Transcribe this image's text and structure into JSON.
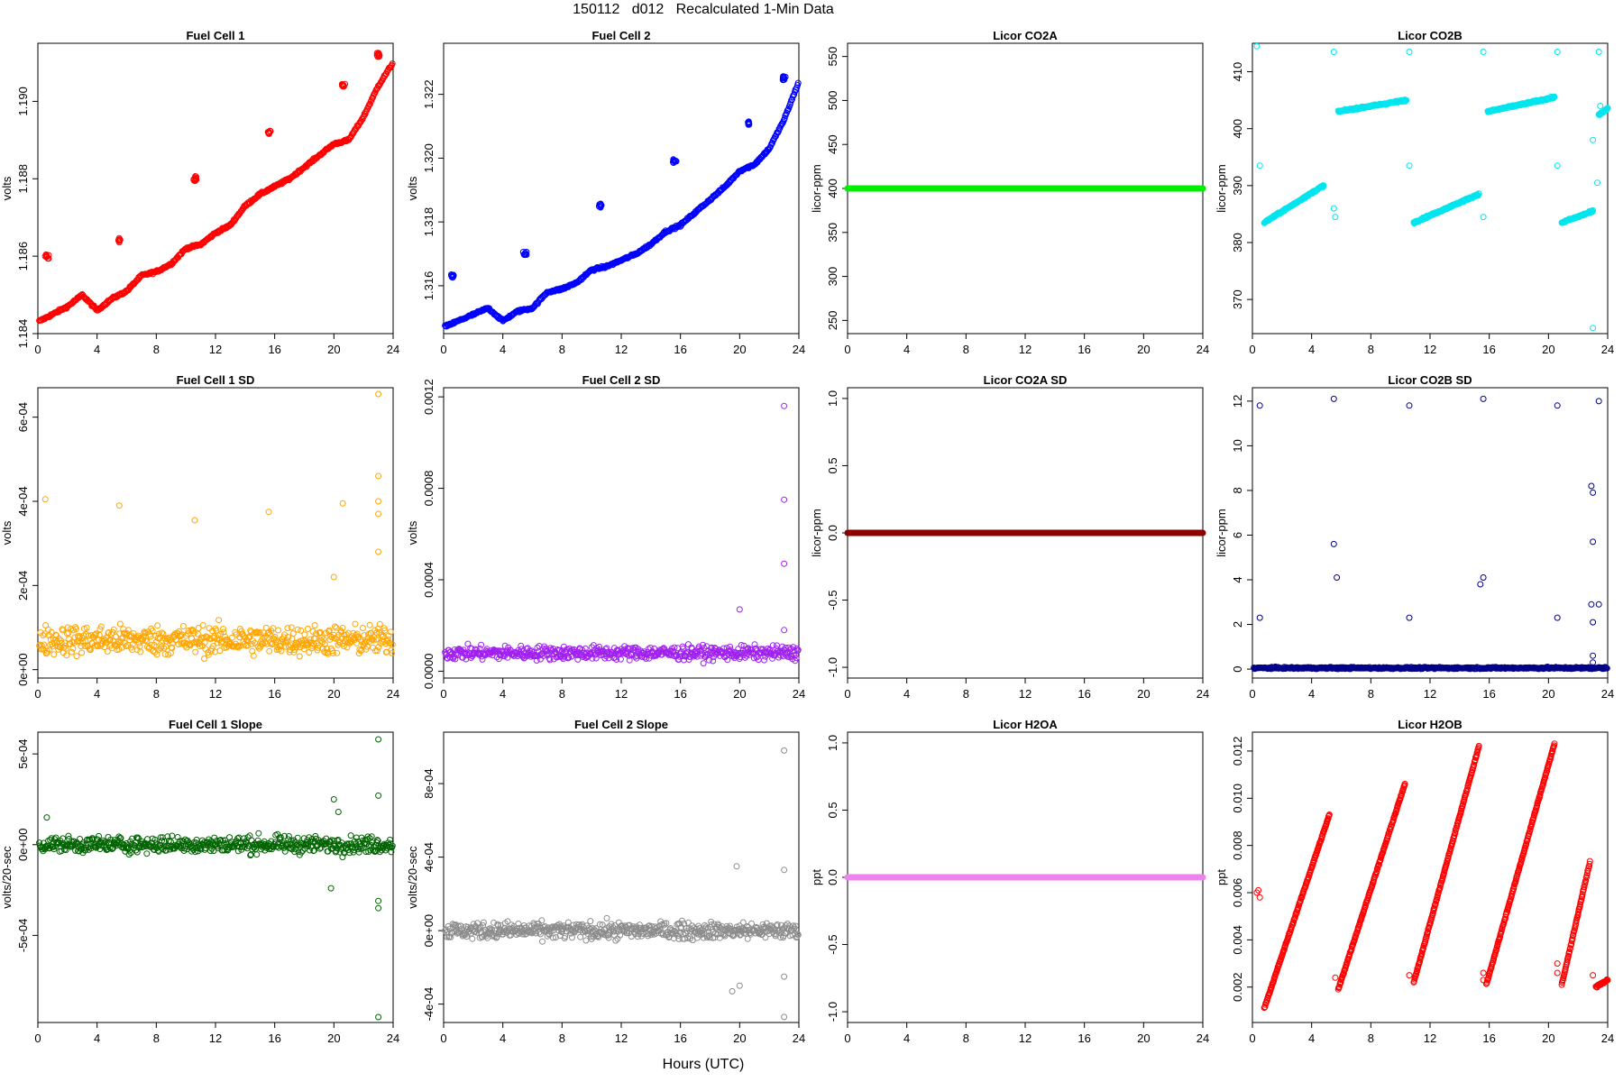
{
  "figure": {
    "title": "150112   d012   Recalculated 1-Min Data",
    "xlabel": "Hours (UTC)"
  },
  "chart_data": [
    {
      "type": "scatter",
      "title": "Fuel Cell 1",
      "ylabel": "volts",
      "color": "#ff0000",
      "xlim": [
        0,
        24
      ],
      "ylim": [
        1.184,
        1.1915
      ],
      "xticks": [
        0,
        4,
        8,
        12,
        16,
        20,
        24
      ],
      "yticks": [
        1.184,
        1.186,
        1.188,
        1.19
      ],
      "yticklabels": [
        "1.184",
        "1.186",
        "1.188",
        "1.190"
      ],
      "trend": [
        [
          0,
          1.1843
        ],
        [
          1,
          1.1845
        ],
        [
          2,
          1.1847
        ],
        [
          3,
          1.185
        ],
        [
          4,
          1.1846
        ],
        [
          5,
          1.1849
        ],
        [
          6,
          1.1851
        ],
        [
          7,
          1.1855
        ],
        [
          8,
          1.1856
        ],
        [
          9,
          1.1858
        ],
        [
          10,
          1.1862
        ],
        [
          11,
          1.1863
        ],
        [
          12,
          1.1866
        ],
        [
          13,
          1.1868
        ],
        [
          14,
          1.1873
        ],
        [
          15,
          1.1876
        ],
        [
          16,
          1.1878
        ],
        [
          17,
          1.188
        ],
        [
          18,
          1.1883
        ],
        [
          19,
          1.1886
        ],
        [
          20,
          1.1889
        ],
        [
          21,
          1.189
        ],
        [
          22,
          1.1896
        ],
        [
          23,
          1.1904
        ],
        [
          24,
          1.191
        ]
      ],
      "clusters": [
        [
          0.6,
          1.186
        ],
        [
          5.5,
          1.1864
        ],
        [
          10.6,
          1.188
        ],
        [
          15.6,
          1.1892
        ],
        [
          20.6,
          1.1904
        ],
        [
          23.0,
          1.1912
        ]
      ]
    },
    {
      "type": "scatter",
      "title": "Fuel Cell 2",
      "ylabel": "volts",
      "color": "#0000ff",
      "xlim": [
        0,
        24
      ],
      "ylim": [
        1.3145,
        1.3236
      ],
      "xticks": [
        0,
        4,
        8,
        12,
        16,
        20,
        24
      ],
      "yticks": [
        1.316,
        1.318,
        1.32,
        1.322
      ],
      "yticklabels": [
        "1.316",
        "1.318",
        "1.320",
        "1.322"
      ],
      "trend": [
        [
          0,
          1.3147
        ],
        [
          1,
          1.3149
        ],
        [
          2,
          1.3151
        ],
        [
          3,
          1.3153
        ],
        [
          4,
          1.3149
        ],
        [
          5,
          1.3152
        ],
        [
          6,
          1.3153
        ],
        [
          7,
          1.3158
        ],
        [
          8,
          1.3159
        ],
        [
          9,
          1.3161
        ],
        [
          10,
          1.3165
        ],
        [
          11,
          1.3166
        ],
        [
          12,
          1.3168
        ],
        [
          13,
          1.317
        ],
        [
          14,
          1.3173
        ],
        [
          15,
          1.3177
        ],
        [
          16,
          1.3179
        ],
        [
          17,
          1.3183
        ],
        [
          18,
          1.3187
        ],
        [
          19,
          1.3191
        ],
        [
          20,
          1.3196
        ],
        [
          21,
          1.3198
        ],
        [
          22,
          1.3203
        ],
        [
          23,
          1.3212
        ],
        [
          24,
          1.3224
        ]
      ],
      "clusters": [
        [
          0.6,
          1.3163
        ],
        [
          5.5,
          1.317
        ],
        [
          10.6,
          1.3185
        ],
        [
          15.6,
          1.3199
        ],
        [
          20.6,
          1.3211
        ],
        [
          23.0,
          1.3225
        ]
      ]
    },
    {
      "type": "line",
      "title": "Licor CO2A",
      "ylabel": "licor-ppm",
      "color": "#00ee00",
      "xlim": [
        0,
        24
      ],
      "ylim": [
        235,
        565
      ],
      "xticks": [
        0,
        4,
        8,
        12,
        16,
        20,
        24
      ],
      "yticks": [
        250,
        300,
        350,
        400,
        450,
        500,
        550
      ],
      "yticklabels": [
        "250",
        "300",
        "350",
        "400",
        "450",
        "500",
        "550"
      ],
      "constant": 400
    },
    {
      "type": "scatter",
      "title": "Licor CO2B",
      "ylabel": "licor-ppm",
      "color": "#00e5ee",
      "xlim": [
        0,
        24
      ],
      "ylim": [
        364,
        415
      ],
      "xticks": [
        0,
        4,
        8,
        12,
        16,
        20,
        24
      ],
      "yticks": [
        370,
        380,
        390,
        400,
        410
      ],
      "yticklabels": [
        "370",
        "380",
        "390",
        "400",
        "410"
      ],
      "segments": [
        [
          0.8,
          383.5,
          4.8,
          390.0
        ],
        [
          5.8,
          403.0,
          10.4,
          405.0
        ],
        [
          10.9,
          383.5,
          15.3,
          388.5
        ],
        [
          15.9,
          403.0,
          20.4,
          405.5
        ],
        [
          20.9,
          383.5,
          23.0,
          385.5
        ],
        [
          23.4,
          402.5,
          24.0,
          403.5
        ]
      ],
      "outliers": [
        [
          0.3,
          414.5
        ],
        [
          0.5,
          393.5
        ],
        [
          5.5,
          413.5
        ],
        [
          5.5,
          386.0
        ],
        [
          5.6,
          384.5
        ],
        [
          10.6,
          413.5
        ],
        [
          10.6,
          393.5
        ],
        [
          15.6,
          413.5
        ],
        [
          15.6,
          384.5
        ],
        [
          20.6,
          413.5
        ],
        [
          20.6,
          393.5
        ],
        [
          23.0,
          365.0
        ],
        [
          23.0,
          398.0
        ],
        [
          23.3,
          390.5
        ],
        [
          23.4,
          413.5
        ],
        [
          23.5,
          404.0
        ]
      ]
    },
    {
      "type": "scatter",
      "title": "Fuel Cell 1 SD",
      "ylabel": "volts",
      "color": "#ffa500",
      "xlim": [
        0,
        24
      ],
      "ylim": [
        -2e-05,
        0.00067
      ],
      "xticks": [
        0,
        4,
        8,
        12,
        16,
        20,
        24
      ],
      "yticks": [
        0,
        0.0002,
        0.0004,
        0.0006
      ],
      "yticklabels": [
        "0e+00",
        "2e-04",
        "4e-04",
        "6e-04"
      ],
      "base": 7e-05,
      "spread": 3.5e-05,
      "outliers": [
        [
          0.5,
          0.000405
        ],
        [
          5.5,
          0.00039
        ],
        [
          10.6,
          0.000355
        ],
        [
          15.6,
          0.000375
        ],
        [
          20.6,
          0.000395
        ],
        [
          20.0,
          0.00022
        ],
        [
          23.0,
          0.000655
        ],
        [
          23.0,
          0.00046
        ],
        [
          23.0,
          0.0004
        ],
        [
          23.0,
          0.00037
        ],
        [
          23.0,
          0.00028
        ]
      ]
    },
    {
      "type": "scatter",
      "title": "Fuel Cell 2 SD",
      "ylabel": "volts",
      "color": "#a020f0",
      "xlim": [
        0,
        24
      ],
      "ylim": [
        -3e-05,
        0.00124
      ],
      "xticks": [
        0,
        4,
        8,
        12,
        16,
        20,
        24
      ],
      "yticks": [
        0,
        0.0004,
        0.0008,
        0.0012
      ],
      "yticklabels": [
        "0.0000",
        "0.0004",
        "0.0008",
        "0.0012"
      ],
      "base": 8e-05,
      "spread": 3e-05,
      "outliers": [
        [
          20.0,
          0.00027
        ],
        [
          23.0,
          0.00116
        ],
        [
          23.0,
          0.00075
        ],
        [
          23.0,
          0.00047
        ],
        [
          23.0,
          0.00018
        ]
      ]
    },
    {
      "type": "line",
      "title": "Licor CO2A SD",
      "ylabel": "licor-ppm",
      "color": "#8b0000",
      "xlim": [
        0,
        24
      ],
      "ylim": [
        -1.08,
        1.08
      ],
      "xticks": [
        0,
        4,
        8,
        12,
        16,
        20,
        24
      ],
      "yticks": [
        -1.0,
        -0.5,
        0.0,
        0.5,
        1.0
      ],
      "yticklabels": [
        "-1.0",
        "-0.5",
        "0.0",
        "0.5",
        "1.0"
      ],
      "constant": 0
    },
    {
      "type": "scatter",
      "title": "Licor CO2B SD",
      "ylabel": "licor-ppm",
      "color": "#00008b",
      "xlim": [
        0,
        24
      ],
      "ylim": [
        -0.4,
        12.6
      ],
      "xticks": [
        0,
        4,
        8,
        12,
        16,
        20,
        24
      ],
      "yticks": [
        0,
        2,
        4,
        6,
        8,
        10,
        12
      ],
      "yticklabels": [
        "0",
        "2",
        "4",
        "6",
        "8",
        "10",
        "12"
      ],
      "base": 0.05,
      "spread": 0.04,
      "outliers": [
        [
          0.5,
          11.8
        ],
        [
          0.5,
          2.3
        ],
        [
          5.5,
          12.1
        ],
        [
          5.5,
          5.6
        ],
        [
          5.7,
          4.1
        ],
        [
          10.6,
          11.8
        ],
        [
          10.6,
          2.3
        ],
        [
          15.4,
          3.8
        ],
        [
          15.6,
          4.1
        ],
        [
          15.6,
          12.1
        ],
        [
          20.6,
          11.8
        ],
        [
          20.6,
          2.3
        ],
        [
          22.9,
          8.2
        ],
        [
          23.0,
          7.9
        ],
        [
          23.0,
          5.7
        ],
        [
          22.9,
          2.9
        ],
        [
          23.0,
          2.1
        ],
        [
          23.0,
          0.6
        ],
        [
          23.0,
          0.3
        ],
        [
          23.4,
          12.0
        ],
        [
          23.4,
          2.9
        ]
      ]
    },
    {
      "type": "scatter",
      "title": "Fuel Cell 1 Slope",
      "ylabel": "volts/20-sec",
      "color": "#006400",
      "xlim": [
        0,
        24
      ],
      "ylim": [
        -0.00098,
        0.00062
      ],
      "xticks": [
        0,
        4,
        8,
        12,
        16,
        20,
        24
      ],
      "yticks": [
        -0.0005,
        0,
        0.0005
      ],
      "yticklabels": [
        "-5e-04",
        "0e+00",
        "5e-04"
      ],
      "base": 0,
      "spread": 4.5e-05,
      "outliers": [
        [
          0.6,
          0.00015
        ],
        [
          20.0,
          0.00025
        ],
        [
          20.3,
          0.00018
        ],
        [
          19.8,
          -0.00024
        ],
        [
          23.0,
          0.00058
        ],
        [
          23.0,
          0.00027
        ],
        [
          23.0,
          -0.00031
        ],
        [
          23.0,
          -0.00035
        ],
        [
          23.0,
          -0.00095
        ]
      ]
    },
    {
      "type": "scatter",
      "title": "Fuel Cell 2 Slope",
      "ylabel": "volts/20-sec",
      "color": "#8c8c8c",
      "xlim": [
        0,
        24
      ],
      "ylim": [
        -0.0005,
        0.00108
      ],
      "xticks": [
        0,
        4,
        8,
        12,
        16,
        20,
        24
      ],
      "yticks": [
        -0.0004,
        0,
        0.0004,
        0.0008
      ],
      "yticklabels": [
        "-4e-04",
        "0e+00",
        "4e-04",
        "8e-04"
      ],
      "base": 0,
      "spread": 4.5e-05,
      "outliers": [
        [
          19.8,
          0.00035
        ],
        [
          20.0,
          -0.0003
        ],
        [
          19.5,
          -0.00033
        ],
        [
          23.0,
          0.00098
        ],
        [
          23.0,
          0.00033
        ],
        [
          23.0,
          -0.00025
        ],
        [
          23.0,
          -0.00047
        ]
      ]
    },
    {
      "type": "line",
      "title": "Licor H2OA",
      "ylabel": "ppt",
      "color": "#ee82ee",
      "xlim": [
        0,
        24
      ],
      "ylim": [
        -1.08,
        1.08
      ],
      "xticks": [
        0,
        4,
        8,
        12,
        16,
        20,
        24
      ],
      "yticks": [
        -1.0,
        -0.5,
        0.0,
        0.5,
        1.0
      ],
      "yticklabels": [
        "-1.0",
        "-0.5",
        "0.0",
        "0.5",
        "1.0"
      ],
      "constant": 0
    },
    {
      "type": "scatter",
      "title": "Licor H2OB",
      "ylabel": "ppt",
      "color": "#ff0000",
      "xlim": [
        0,
        24
      ],
      "ylim": [
        0.0005,
        0.0128
      ],
      "xticks": [
        0,
        4,
        8,
        12,
        16,
        20,
        24
      ],
      "yticks": [
        0.002,
        0.004,
        0.006,
        0.008,
        0.01,
        0.012
      ],
      "yticklabels": [
        "0.002",
        "0.004",
        "0.006",
        "0.008",
        "0.010",
        "0.012"
      ],
      "segments": [
        [
          0.8,
          0.0011,
          5.2,
          0.0093
        ],
        [
          5.8,
          0.0019,
          10.3,
          0.0106
        ],
        [
          10.9,
          0.0022,
          15.3,
          0.0122
        ],
        [
          15.8,
          0.0021,
          20.4,
          0.0123
        ],
        [
          20.9,
          0.0021,
          22.8,
          0.0073
        ],
        [
          23.2,
          0.002,
          24.0,
          0.0023
        ]
      ],
      "outliers": [
        [
          0.3,
          0.006
        ],
        [
          0.5,
          0.0058
        ],
        [
          0.4,
          0.0061
        ],
        [
          5.6,
          0.0024
        ],
        [
          10.6,
          0.0025
        ],
        [
          15.6,
          0.0026
        ],
        [
          15.6,
          0.0023
        ],
        [
          20.6,
          0.003
        ],
        [
          20.6,
          0.0026
        ],
        [
          23.0,
          0.0025
        ]
      ]
    }
  ]
}
